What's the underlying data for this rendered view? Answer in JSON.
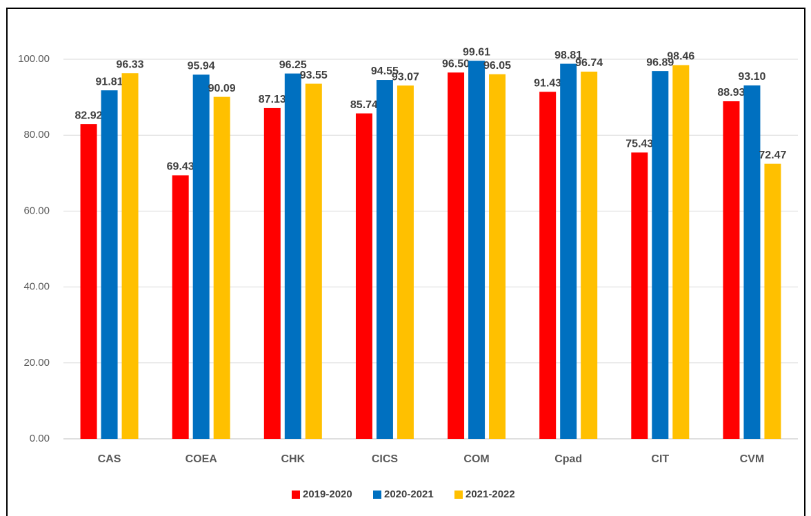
{
  "chart_data": {
    "type": "bar",
    "categories": [
      "CAS",
      "COEA",
      "CHK",
      "CICS",
      "COM",
      "Cpad",
      "CIT",
      "CVM"
    ],
    "series": [
      {
        "name": "2019-2020",
        "color": "#ff0000",
        "values": [
          82.92,
          69.43,
          87.13,
          85.74,
          96.5,
          91.43,
          75.43,
          88.93
        ],
        "value_labels": [
          "82.92",
          "69.43",
          "87.13",
          "85.74",
          "96.50",
          "91.43",
          "75.43",
          "88.93"
        ]
      },
      {
        "name": "2020-2021",
        "color": "#0070c0",
        "values": [
          91.81,
          95.94,
          96.25,
          94.55,
          99.61,
          98.81,
          96.89,
          93.1
        ],
        "value_labels": [
          "91.81",
          "95.94",
          "96.25",
          "94.55",
          "99.61",
          "98.81",
          "96.89",
          "93.10"
        ]
      },
      {
        "name": "2021-2022",
        "color": "#ffc000",
        "values": [
          96.33,
          90.09,
          93.55,
          93.07,
          96.05,
          96.74,
          98.46,
          72.47
        ],
        "value_labels": [
          "96.33",
          "90.09",
          "93.55",
          "93.07",
          "96.05",
          "96.74",
          "98.46",
          "72.47"
        ]
      }
    ],
    "ylim": [
      0,
      100
    ],
    "yticks": [
      {
        "value": 0,
        "label": "0.00"
      },
      {
        "value": 20,
        "label": "20.00"
      },
      {
        "value": 40,
        "label": "40.00"
      },
      {
        "value": 60,
        "label": "60.00"
      },
      {
        "value": 80,
        "label": "80.00"
      },
      {
        "value": 100,
        "label": "100.00"
      }
    ],
    "grid": true,
    "legend": "bottom"
  }
}
